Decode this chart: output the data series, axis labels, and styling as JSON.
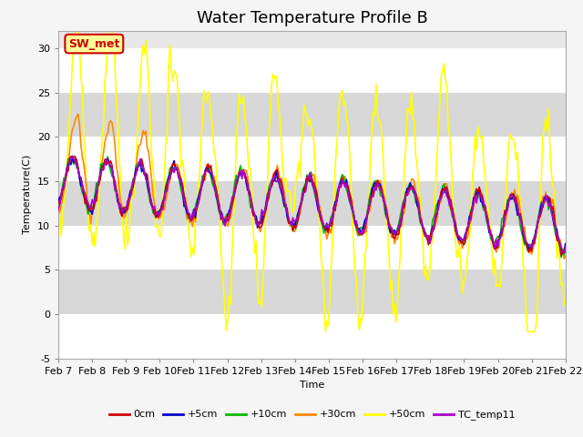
{
  "title": "Water Temperature Profile B",
  "xlabel": "Time",
  "ylabel": "Temperature(C)",
  "ylim": [
    -5,
    32
  ],
  "yticks": [
    -5,
    0,
    5,
    10,
    15,
    20,
    25,
    30
  ],
  "xlim": [
    0,
    15
  ],
  "colors": {
    "0cm": "#cc0000",
    "+5cm": "#0000cc",
    "+10cm": "#00bb00",
    "+30cm": "#ff8800",
    "+50cm": "#ffff00",
    "TC_temp11": "#aa00cc"
  },
  "legend_label": "SW_met",
  "legend_box_color": "#cc0000",
  "legend_box_fill": "#ffff99",
  "plot_bg": "#e8e8e8",
  "band_light": "#ebebeb",
  "band_dark": "#d8d8d8",
  "x_tick_labels": [
    "Feb 7",
    "Feb 8",
    "Feb 9",
    "Feb 10",
    "Feb 11",
    "Feb 12",
    "Feb 13",
    "Feb 14",
    "Feb 15",
    "Feb 16",
    "Feb 17",
    "Feb 18",
    "Feb 19",
    "Feb 20",
    "Feb 21",
    "Feb 22"
  ],
  "title_fontsize": 13,
  "tick_fontsize": 8
}
